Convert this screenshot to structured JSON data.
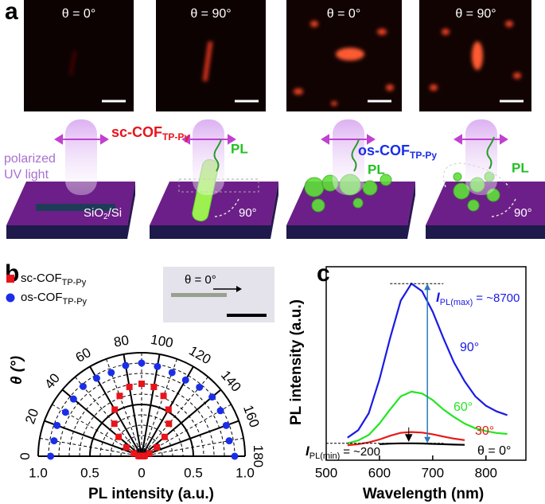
{
  "figure": {
    "panel_a": {
      "label": "a",
      "image_labels": [
        "θ = 0°",
        "θ = 90°",
        "θ = 0°",
        "θ = 90°"
      ],
      "light_label": [
        "polarized",
        "UV light"
      ],
      "sc_label": {
        "text": "sc-COF",
        "subscript": "TP-Py"
      },
      "os_label": {
        "text": "os-COF",
        "subscript": "TP-Py"
      },
      "pl_labels": [
        "PL",
        "PL",
        "PL"
      ],
      "substrate": {
        "text": "SiO",
        "subscript": "2",
        "tail": "/Si"
      },
      "angle_labels": [
        "90°",
        "90°"
      ]
    },
    "panel_b": {
      "label": "b",
      "inset_label": "θ = 0°"
    },
    "panel_c": {
      "label": "c"
    }
  },
  "chart_data": [
    {
      "type": "polar",
      "ylabel": "θ (°)",
      "xlabel": "PL intensity (a.u.)",
      "x": [
        0,
        10,
        20,
        30,
        40,
        50,
        60,
        70,
        80,
        90,
        100,
        110,
        120,
        130,
        140,
        150,
        160,
        170,
        180
      ],
      "theta_ticks": [
        0,
        20,
        40,
        60,
        80,
        100,
        120,
        140,
        160,
        180
      ],
      "rlim": [
        0,
        1
      ],
      "rticks": [
        0,
        0.5,
        {
          "value": 1,
          "label": "1.0"
        }
      ],
      "series": [
        {
          "name": "sc-COF",
          "name_subscript": "TP-Py",
          "color": "#e8141a",
          "marker": "square",
          "values": [
            0.02,
            0.03,
            0.08,
            0.17,
            0.29,
            0.41,
            0.52,
            0.62,
            0.68,
            0.7,
            0.68,
            0.62,
            0.52,
            0.41,
            0.29,
            0.17,
            0.08,
            0.03,
            0.02
          ]
        },
        {
          "name": "os-COF",
          "name_subscript": "TP-Py",
          "color": "#1a2ee8",
          "marker": "circle",
          "values": [
            0.88,
            0.86,
            0.87,
            0.85,
            0.86,
            0.88,
            0.87,
            0.86,
            0.89,
            0.9,
            0.88,
            0.86,
            0.85,
            0.87,
            0.89,
            0.88,
            0.87,
            0.86,
            0.9
          ]
        }
      ]
    },
    {
      "type": "line",
      "ylabel": "PL intensity (a.u.)",
      "xlabel": "Wavelength (nm)",
      "x": [
        540,
        560,
        580,
        600,
        620,
        640,
        660,
        680,
        700,
        720,
        740,
        760,
        780,
        800,
        820,
        840
      ],
      "xlim": [
        500,
        875
      ],
      "xticks": [
        500,
        600,
        700,
        800
      ],
      "ylim": [
        -700,
        9600
      ],
      "series": [
        {
          "name": "90°",
          "color": "#1a1ae6",
          "values": [
            500,
            900,
            1800,
            3600,
            5800,
            7800,
            8700,
            8300,
            7200,
            5800,
            4500,
            3500,
            2700,
            2200,
            1900,
            1700
          ]
        },
        {
          "name": "60°",
          "color": "#22e622",
          "values": [
            200,
            350,
            650,
            1250,
            2000,
            2700,
            2950,
            2850,
            2500,
            2000,
            1600,
            1250,
            1000,
            850,
            750,
            700
          ]
        },
        {
          "name": "30°",
          "color": "#e61a1a",
          "values": [
            100,
            150,
            250,
            400,
            600,
            760,
            800,
            770,
            680,
            560,
            450,
            370,
            null,
            null,
            null,
            null
          ]
        },
        {
          "name": "θ = 0°",
          "color": "#000000",
          "values": [
            null,
            null,
            null,
            150,
            180,
            200,
            200,
            190,
            170,
            150,
            130,
            120,
            null,
            null,
            null,
            null
          ]
        }
      ],
      "annotations": [
        {
          "symbol": "I",
          "subscript": "PL(max)",
          "text": "= ~8700",
          "value": 8700
        },
        {
          "symbol": "I",
          "subscript": "PL(min)",
          "text": "= ~200",
          "value": 200
        }
      ]
    }
  ]
}
